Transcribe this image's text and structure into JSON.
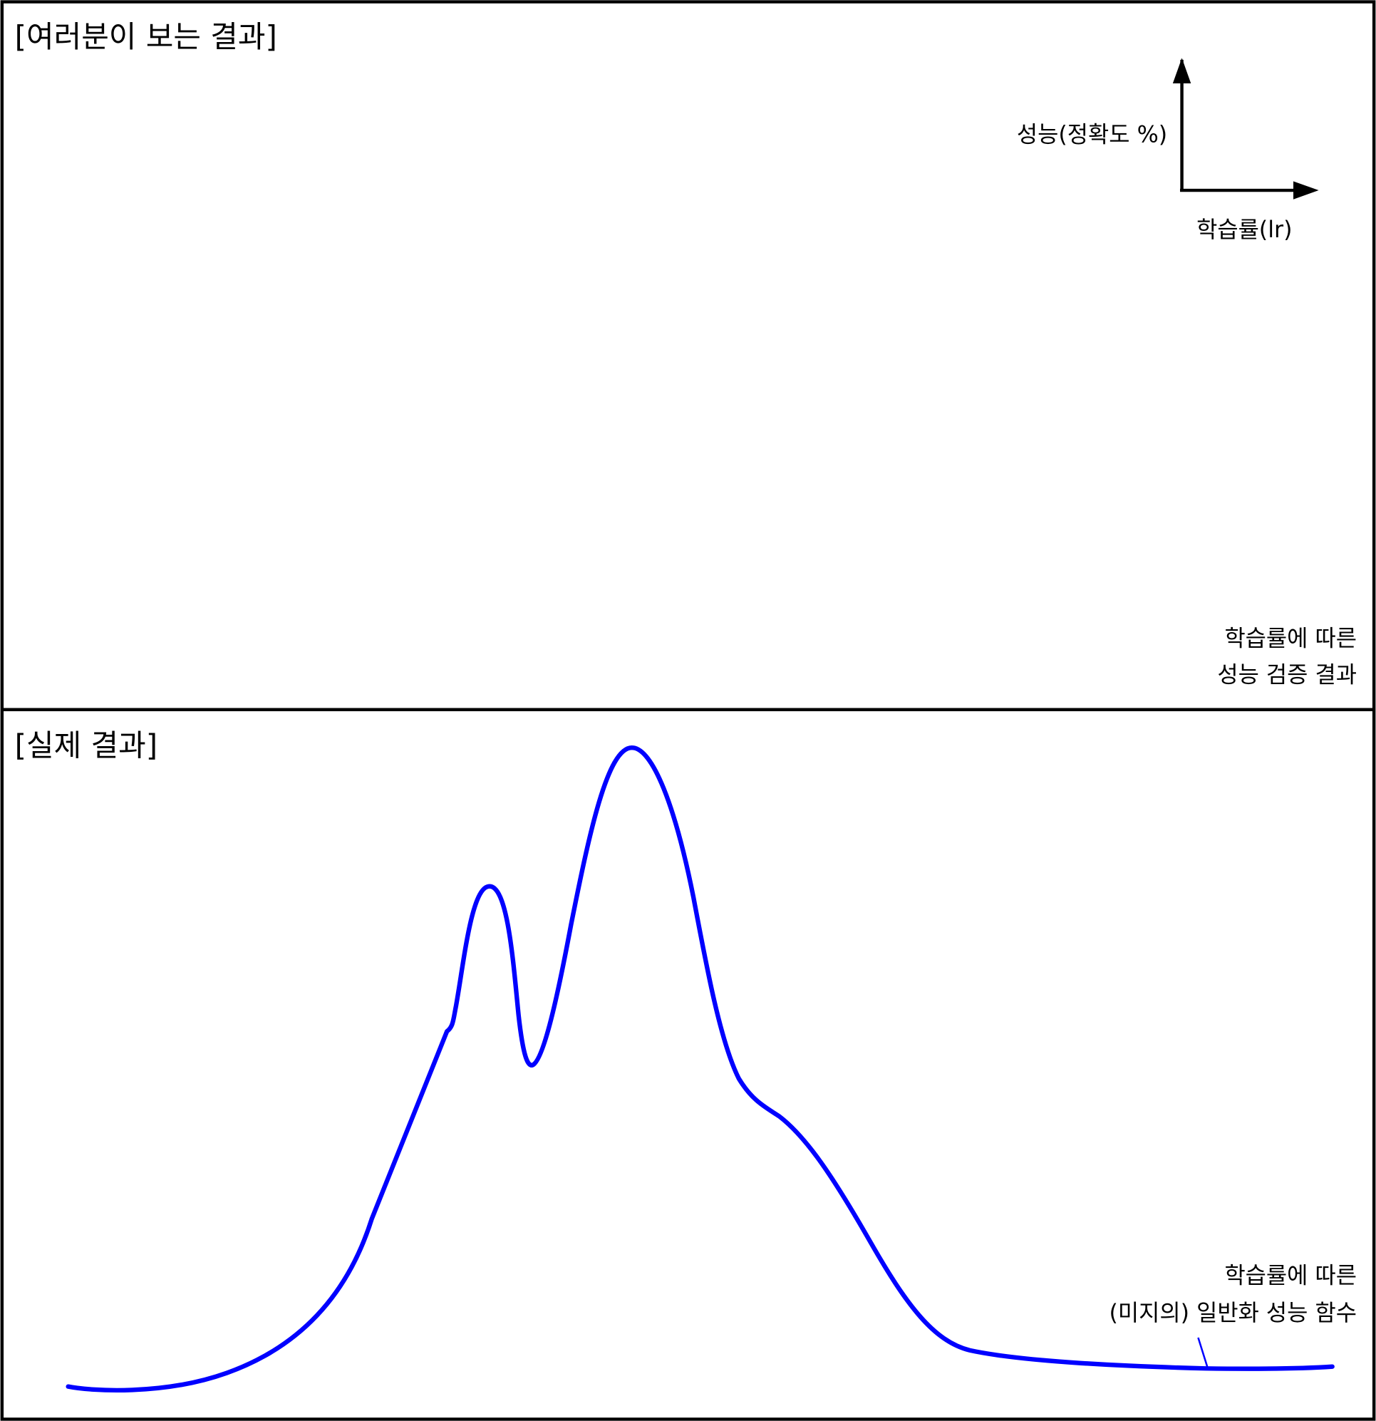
{
  "top_panel": {
    "title": "[여러분이 보는 결과]",
    "y_axis_label": "성능(정확도 %)",
    "x_axis_label": "학습률(lr)",
    "caption_line1": "학습률에 따른",
    "caption_line2": "성능 검증 결과"
  },
  "bottom_panel": {
    "title": "[실제 결과]",
    "caption_line1": "학습률에 따른",
    "caption_line2": "(미지의) 일반화 성능 함수",
    "curve_color": "#0000ff"
  }
}
